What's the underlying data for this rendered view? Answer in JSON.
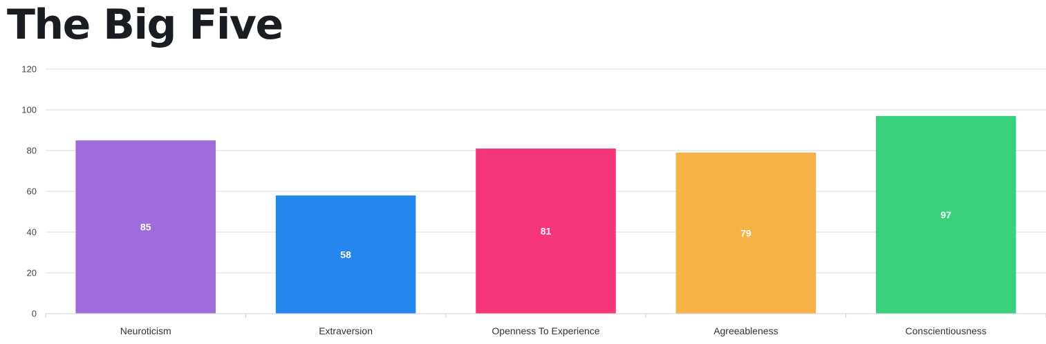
{
  "page": {
    "title": "The Big Five"
  },
  "chart_data": {
    "type": "bar",
    "title": "",
    "xlabel": "",
    "ylabel": "",
    "categories": [
      "Neuroticism",
      "Extraversion",
      "Openness To Experience",
      "Agreeableness",
      "Conscientiousness"
    ],
    "values": [
      85,
      58,
      81,
      79,
      97
    ],
    "colors": [
      "#a06cdb",
      "#2586ef",
      "#f5357a",
      "#f6b246",
      "#38d07a"
    ],
    "ylim": [
      0,
      120
    ],
    "yticks": [
      0,
      20,
      40,
      60,
      80,
      100,
      120
    ],
    "grid": true,
    "data_labels": true,
    "legend": "none"
  }
}
